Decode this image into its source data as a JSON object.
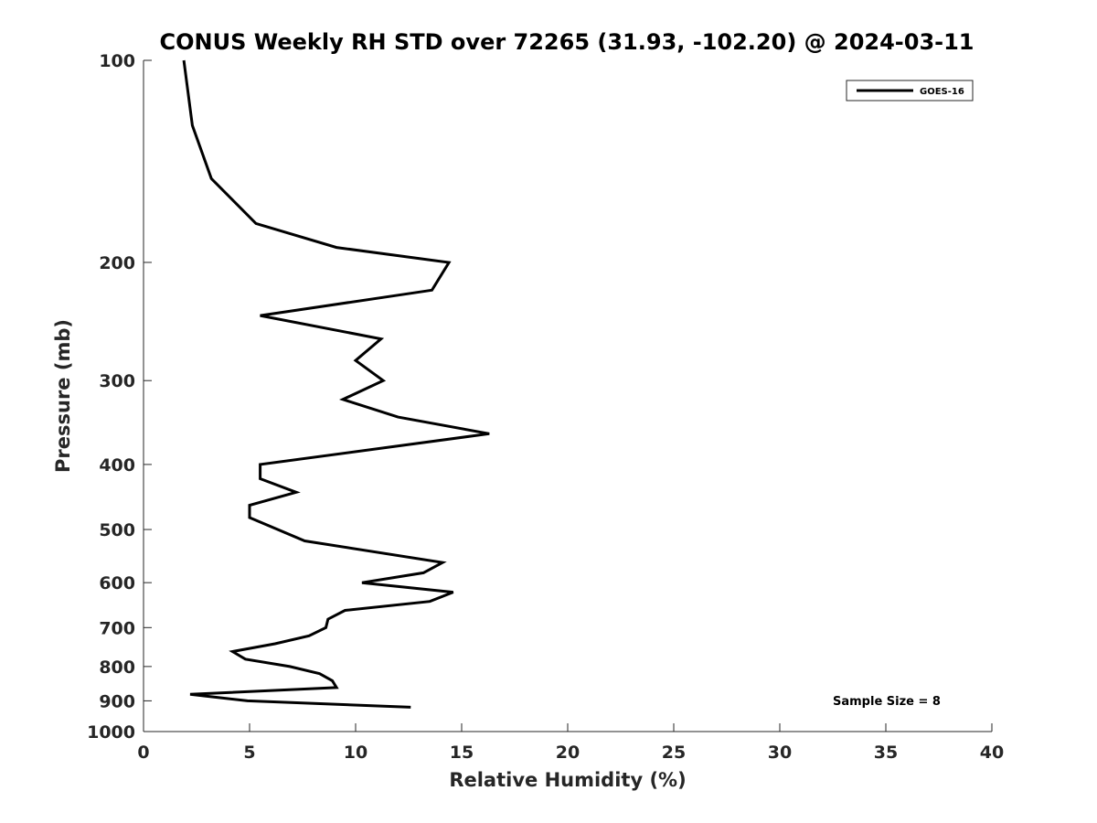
{
  "chart_data": {
    "type": "line",
    "title": "CONUS Weekly RH STD over 72265 (31.93, -102.20) @ 2024-03-11",
    "xlabel": "Relative Humidity (%)",
    "ylabel": "Pressure (mb)",
    "xlim": [
      0,
      40
    ],
    "ylim": [
      100,
      1000
    ],
    "y_scale": "log",
    "y_reversed": true,
    "grid": false,
    "x_ticks": [
      "0",
      "5",
      "10",
      "15",
      "20",
      "25",
      "30",
      "35",
      "40"
    ],
    "y_ticks": [
      "100",
      "200",
      "300",
      "400",
      "500",
      "600",
      "700",
      "800",
      "900",
      "1000"
    ],
    "legend": {
      "location": "top-right",
      "entries": [
        "GOES-16"
      ]
    },
    "annotation": "Sample Size = 8",
    "series": [
      {
        "name": "GOES-16",
        "color": "#000000",
        "points": [
          [
            1.9,
            100
          ],
          [
            2.3,
            125
          ],
          [
            3.2,
            150
          ],
          [
            5.3,
            175
          ],
          [
            9.1,
            190
          ],
          [
            14.4,
            200
          ],
          [
            13.6,
            220
          ],
          [
            5.5,
            240
          ],
          [
            11.2,
            260
          ],
          [
            10.0,
            280
          ],
          [
            11.3,
            300
          ],
          [
            9.4,
            320
          ],
          [
            12.0,
            340
          ],
          [
            16.3,
            360
          ],
          [
            5.5,
            400
          ],
          [
            5.5,
            420
          ],
          [
            7.2,
            440
          ],
          [
            5.0,
            460
          ],
          [
            5.0,
            480
          ],
          [
            7.6,
            520
          ],
          [
            14.1,
            560
          ],
          [
            13.2,
            580
          ],
          [
            10.3,
            600
          ],
          [
            14.6,
            620
          ],
          [
            13.5,
            640
          ],
          [
            9.5,
            660
          ],
          [
            8.7,
            680
          ],
          [
            8.6,
            700
          ],
          [
            7.8,
            720
          ],
          [
            6.2,
            740
          ],
          [
            4.2,
            760
          ],
          [
            4.8,
            780
          ],
          [
            6.9,
            800
          ],
          [
            8.3,
            820
          ],
          [
            8.9,
            840
          ],
          [
            9.1,
            860
          ],
          [
            2.2,
            880
          ],
          [
            4.9,
            900
          ],
          [
            12.6,
            920
          ]
        ]
      }
    ]
  }
}
